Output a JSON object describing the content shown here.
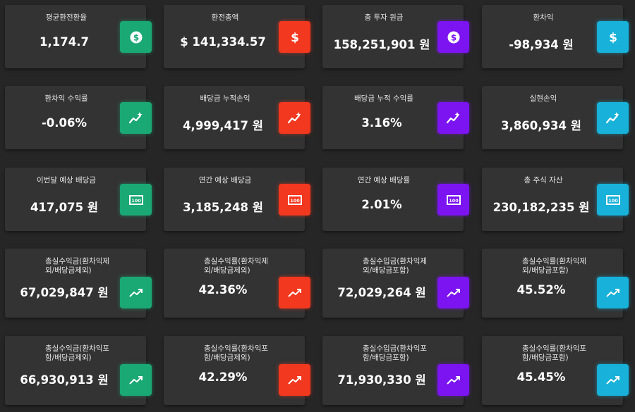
{
  "colors": {
    "green": "#1aa875",
    "red": "#f2381f",
    "purple": "#7b14f0",
    "blue": "#17b1d9",
    "background": "#262626",
    "card": "#333333"
  },
  "rows": [
    [
      {
        "title": "평균환전환율",
        "value": "1,174.7",
        "icon": "dollar-coin-icon"
      },
      {
        "title": "환전총액",
        "value": "$ 141,334.57",
        "icon": "dollar-sign-icon"
      },
      {
        "title": "총 투자 원금",
        "value": "158,251,901 원",
        "icon": "dollar-coin-icon"
      },
      {
        "title": "환차익",
        "value": "-98,934 원",
        "icon": "dollar-sign-icon"
      }
    ],
    [
      {
        "title": "환차익 수익률",
        "value": "-0.06%",
        "icon": "sparkle-chart-icon"
      },
      {
        "title": "배당금 누적손익",
        "value": "4,999,417 원",
        "icon": "sparkle-chart-icon"
      },
      {
        "title": "배당금 누적 수익률",
        "value": "3.16%",
        "icon": "sparkle-chart-icon"
      },
      {
        "title": "실현손익",
        "value": "3,860,934 원",
        "icon": "sparkle-chart-icon"
      }
    ],
    [
      {
        "title": "이번달 예상 배당금",
        "value": "417,075 원",
        "icon": "banknote-icon"
      },
      {
        "title": "연간 예상 배당금",
        "value": "3,185,248 원",
        "icon": "banknote-icon"
      },
      {
        "title": "연간 예상 배당률",
        "value": "2.01%",
        "icon": "banknote-icon"
      },
      {
        "title": "총 주식 자산",
        "value": "230,182,235 원",
        "icon": "banknote-icon"
      }
    ],
    [
      {
        "title": "총실수익금(환차익제외/배당금제외)",
        "value": "67,029,847 원",
        "icon": "trending-up-icon"
      },
      {
        "title": "총실수익률(환차익제외/배당금제외)",
        "value": "42.36%",
        "icon": "trending-up-icon"
      },
      {
        "title": "총실수입금(환차익제외/배당금포함)",
        "value": "72,029,264 원",
        "icon": "trending-up-icon"
      },
      {
        "title": "총실수익률(환차익제외/배당금포함)",
        "value": "45.52%",
        "icon": "trending-up-icon"
      }
    ],
    [
      {
        "title": "총실수익금(환차익포함/배당금제외)",
        "value": "66,930,913 원",
        "icon": "trending-up-icon"
      },
      {
        "title": "총실수익률(환차익포함/배당금제외)",
        "value": "42.29%",
        "icon": "trending-up-icon"
      },
      {
        "title": "총실수입금(환차익포함/배당금포함)",
        "value": "71,930,330 원",
        "icon": "trending-up-icon"
      },
      {
        "title": "총실수익률(환차익포함/배당금포함)",
        "value": "45.45%",
        "icon": "trending-up-icon"
      }
    ]
  ]
}
